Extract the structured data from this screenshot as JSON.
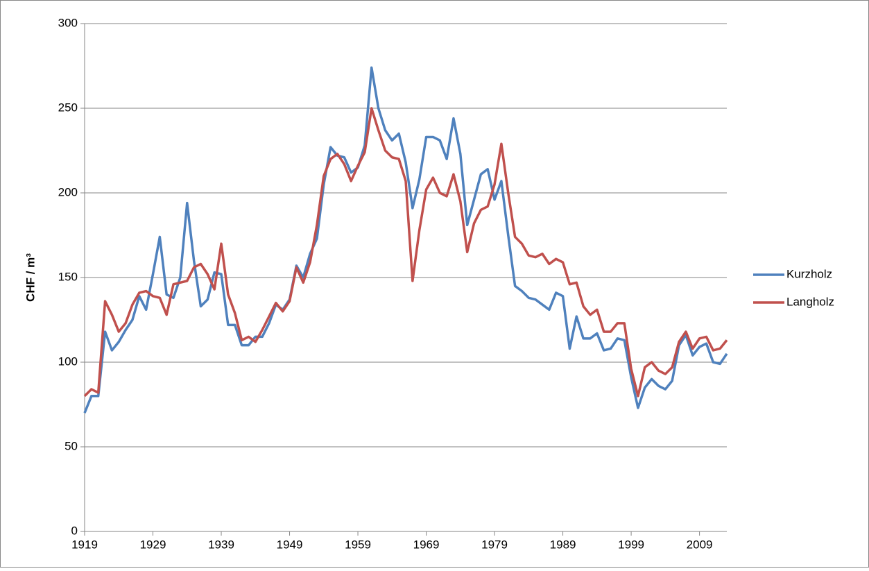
{
  "chart_data": {
    "type": "line",
    "y_label": "CHF / m³",
    "x": [
      1919,
      1920,
      1921,
      1922,
      1923,
      1924,
      1925,
      1926,
      1927,
      1928,
      1929,
      1930,
      1931,
      1932,
      1933,
      1934,
      1935,
      1936,
      1937,
      1938,
      1939,
      1940,
      1941,
      1942,
      1943,
      1944,
      1945,
      1946,
      1947,
      1948,
      1949,
      1950,
      1951,
      1952,
      1953,
      1954,
      1955,
      1956,
      1957,
      1958,
      1959,
      1960,
      1961,
      1962,
      1963,
      1964,
      1965,
      1966,
      1967,
      1968,
      1969,
      1970,
      1971,
      1972,
      1973,
      1974,
      1975,
      1976,
      1977,
      1978,
      1979,
      1980,
      1981,
      1982,
      1983,
      1984,
      1985,
      1986,
      1987,
      1988,
      1989,
      1990,
      1991,
      1992,
      1993,
      1994,
      1995,
      1996,
      1997,
      1998,
      1999,
      2000,
      2001,
      2002,
      2003,
      2004,
      2005,
      2006,
      2007,
      2008,
      2009,
      2010,
      2011,
      2012,
      2013
    ],
    "series": [
      {
        "name": "Kurzholz",
        "color": "#4f81bd",
        "values": [
          70,
          80,
          80,
          118,
          107,
          112,
          119,
          125,
          139,
          131,
          152,
          174,
          140,
          138,
          150,
          194,
          160,
          133,
          137,
          153,
          152,
          122,
          122,
          110,
          110,
          115,
          115,
          123,
          134,
          131,
          137,
          157,
          150,
          164,
          173,
          205,
          227,
          222,
          221,
          212,
          215,
          228,
          274,
          250,
          237,
          231,
          235,
          218,
          191,
          208,
          233,
          233,
          231,
          220,
          244,
          223,
          181,
          196,
          211,
          214,
          196,
          207,
          175,
          145,
          142,
          138,
          137,
          134,
          131,
          141,
          139,
          108,
          127,
          114,
          114,
          117,
          107,
          108,
          114,
          113,
          91,
          73,
          85,
          90,
          86,
          84,
          89,
          110,
          116,
          104,
          109,
          111,
          100,
          99,
          105
        ]
      },
      {
        "name": "Langholz",
        "color": "#c0504d",
        "values": [
          80,
          84,
          82,
          136,
          128,
          118,
          123,
          134,
          141,
          142,
          139,
          138,
          128,
          146,
          147,
          148,
          156,
          158,
          152,
          143,
          170,
          140,
          129,
          113,
          115,
          112,
          119,
          127,
          135,
          130,
          136,
          156,
          147,
          159,
          181,
          210,
          220,
          223,
          217,
          207,
          216,
          224,
          250,
          237,
          225,
          221,
          220,
          207,
          148,
          178,
          202,
          209,
          200,
          198,
          211,
          195,
          165,
          182,
          190,
          192,
          205,
          229,
          200,
          174,
          170,
          163,
          162,
          164,
          158,
          161,
          159,
          146,
          147,
          133,
          128,
          131,
          118,
          118,
          123,
          123,
          96,
          80,
          97,
          100,
          95,
          93,
          97,
          112,
          118,
          108,
          114,
          115,
          107,
          108,
          113
        ]
      }
    ],
    "xlim": [
      1919,
      2013
    ],
    "xticks": [
      1919,
      1929,
      1939,
      1949,
      1959,
      1969,
      1979,
      1989,
      1999,
      2009
    ],
    "ylim": [
      0,
      300
    ],
    "yticks": [
      0,
      50,
      100,
      150,
      200,
      250,
      300
    ],
    "grid": true,
    "legend": "right"
  }
}
